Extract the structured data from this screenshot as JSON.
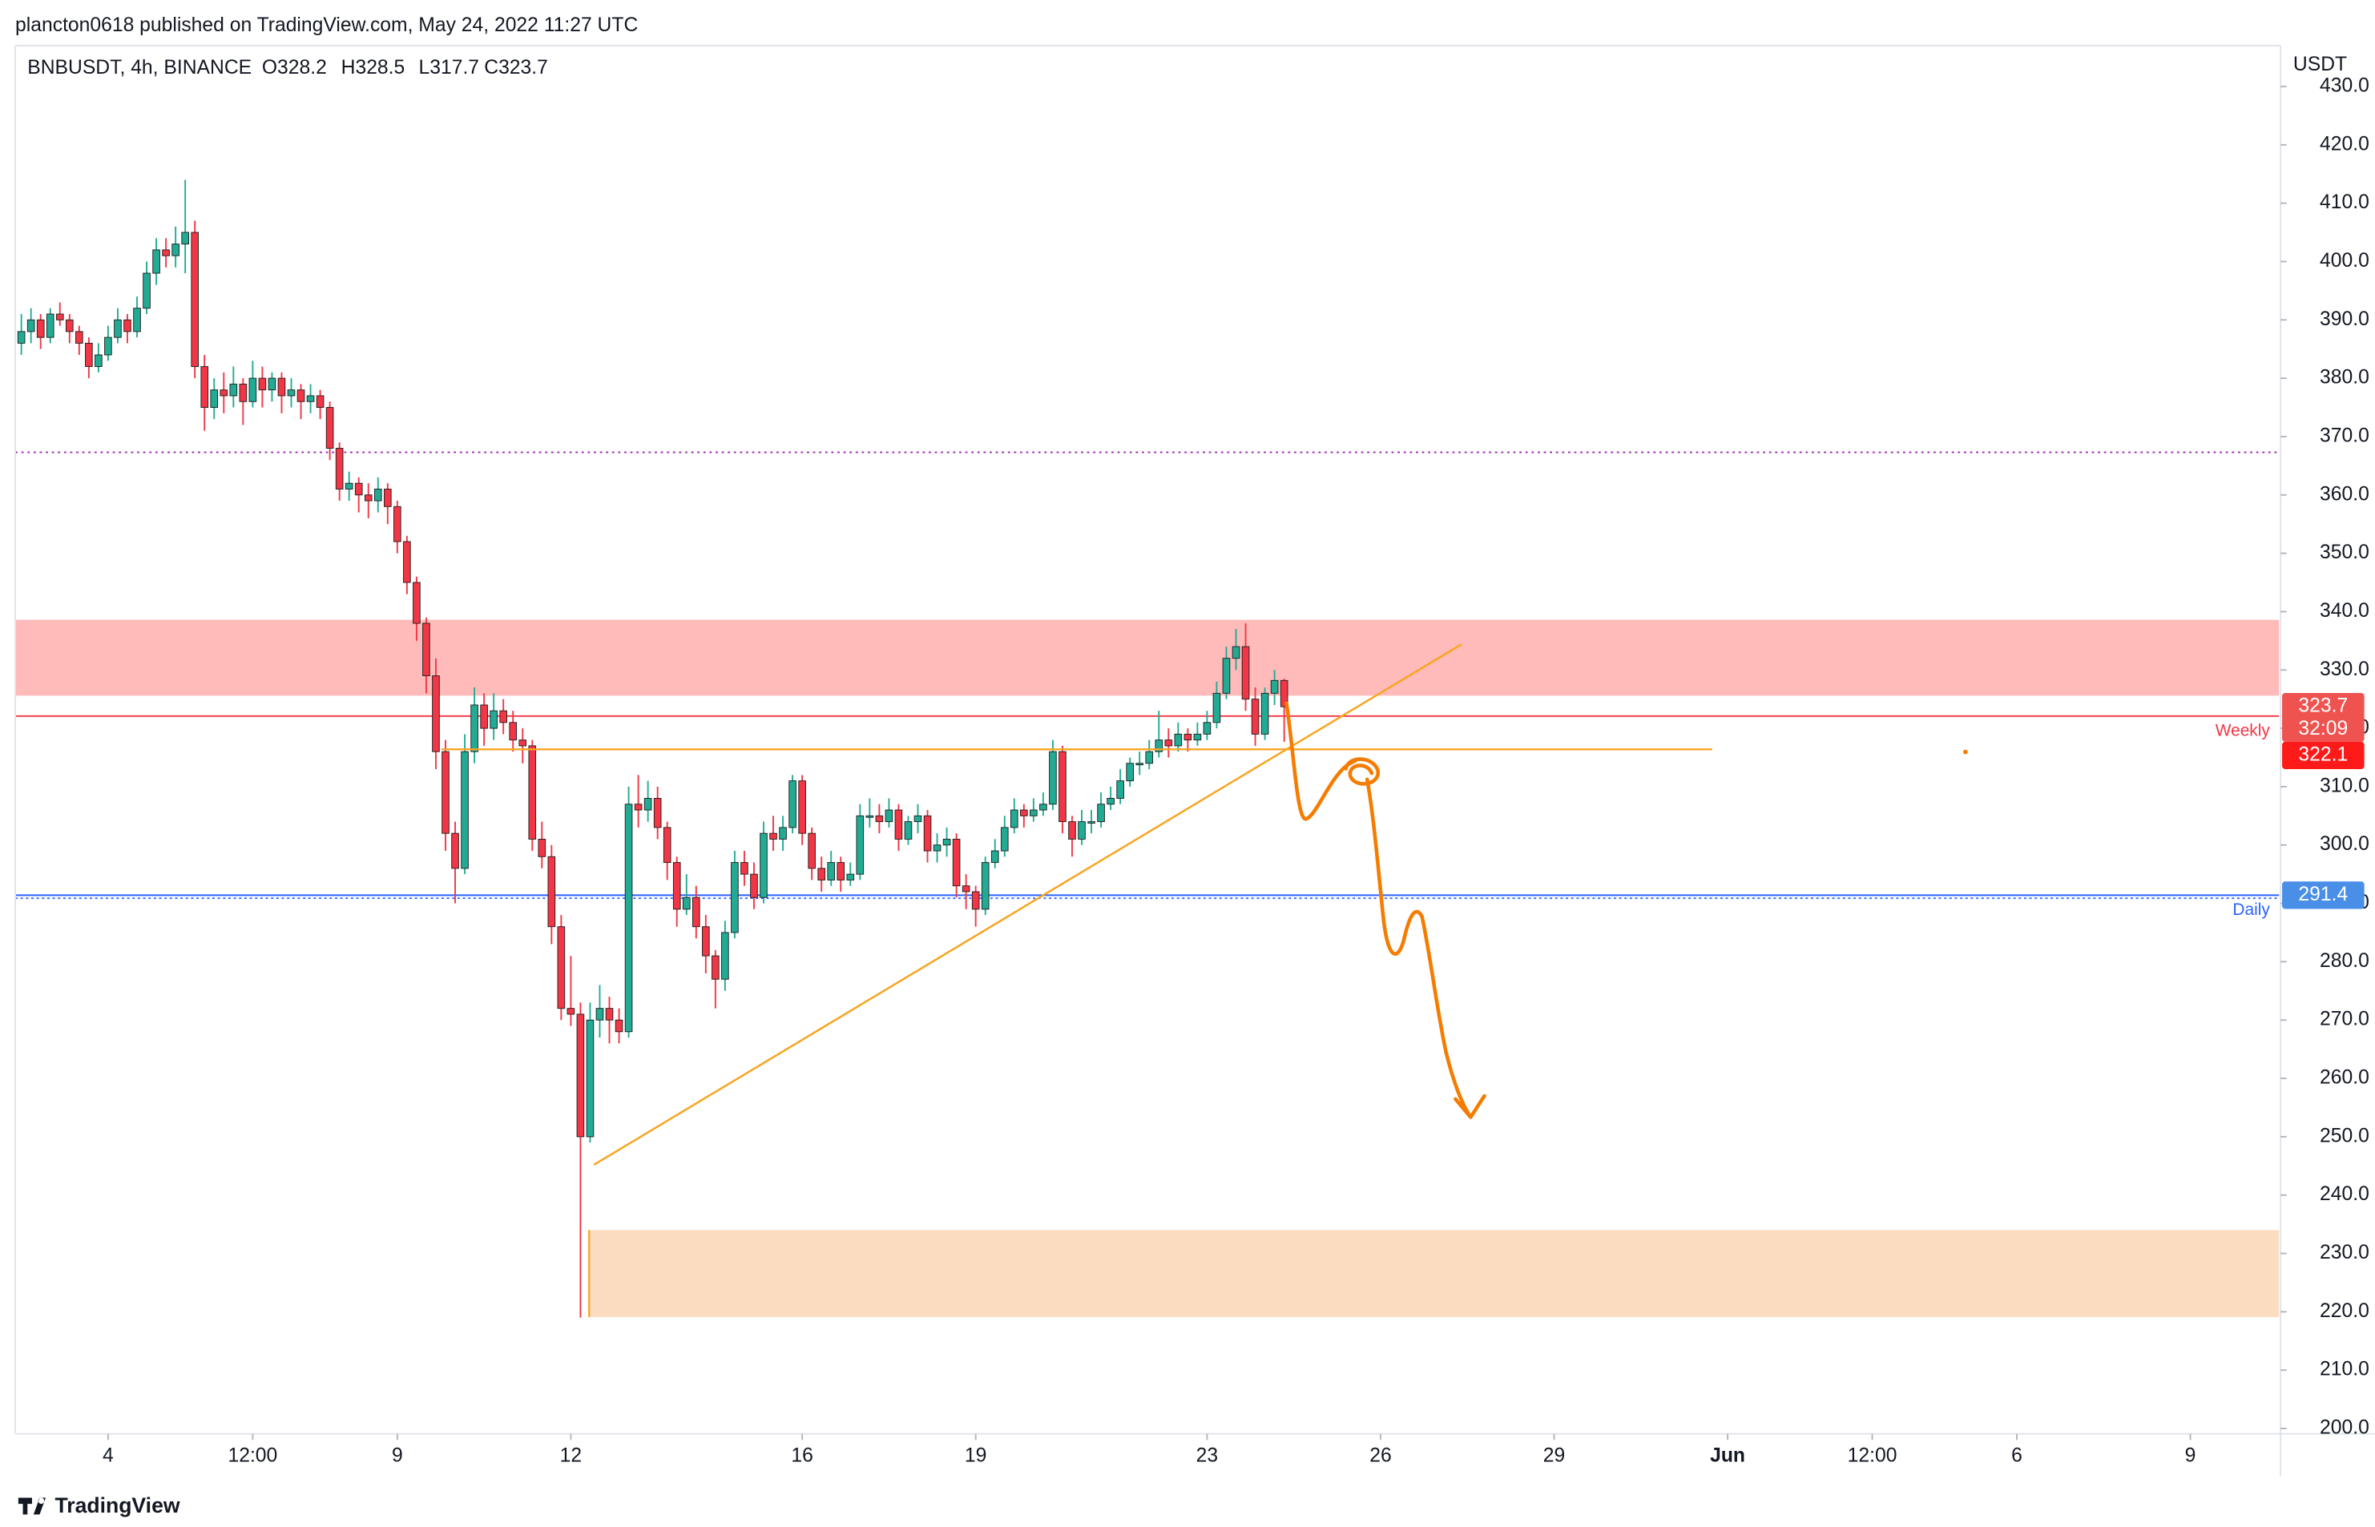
{
  "header": "plancton0618 published on TradingView.com, May 24, 2022 11:27 UTC",
  "footer": "TradingView",
  "chart_data": {
    "type": "candlestick",
    "symbol": "BNBUSDT, 4h, BINANCE",
    "ohlc_labels": [
      "O328.2",
      "H328.5",
      "L317.7",
      "C323.7"
    ],
    "y_axis_label": "USDT",
    "colors": {
      "up": "#22ab94",
      "down": "#f23645"
    },
    "grid": false,
    "candles": [
      [
        386,
        391,
        384,
        388
      ],
      [
        388,
        392,
        386,
        390
      ],
      [
        390,
        391,
        385,
        387
      ],
      [
        387,
        392,
        386,
        391
      ],
      [
        391,
        393,
        389,
        390
      ],
      [
        390,
        391,
        386,
        388
      ],
      [
        388,
        389,
        384,
        386
      ],
      [
        386,
        387,
        380,
        382
      ],
      [
        382,
        386,
        381,
        384
      ],
      [
        384,
        389,
        383,
        387
      ],
      [
        387,
        392,
        386,
        390
      ],
      [
        390,
        391,
        386,
        388
      ],
      [
        388,
        394,
        387,
        392
      ],
      [
        392,
        400,
        391,
        398
      ],
      [
        398,
        404,
        396,
        402
      ],
      [
        402,
        404,
        399,
        401
      ],
      [
        401,
        406,
        399,
        403
      ],
      [
        403,
        414,
        398,
        405
      ],
      [
        405,
        407,
        380,
        382
      ],
      [
        382,
        384,
        371,
        375
      ],
      [
        375,
        380,
        373,
        378
      ],
      [
        378,
        381,
        374,
        377
      ],
      [
        377,
        382,
        375,
        379
      ],
      [
        379,
        380,
        372,
        376
      ],
      [
        376,
        383,
        375,
        380
      ],
      [
        380,
        382,
        375,
        378
      ],
      [
        378,
        381,
        376,
        380
      ],
      [
        380,
        381,
        374,
        377
      ],
      [
        377,
        380,
        375,
        378
      ],
      [
        378,
        379,
        373,
        376
      ],
      [
        376,
        379,
        374,
        377
      ],
      [
        377,
        378,
        373,
        375
      ],
      [
        375,
        376,
        366,
        368
      ],
      [
        368,
        369,
        359,
        361
      ],
      [
        361,
        364,
        359,
        362
      ],
      [
        362,
        363,
        357,
        360
      ],
      [
        360,
        362,
        356,
        359
      ],
      [
        359,
        363,
        357,
        361
      ],
      [
        361,
        362,
        355,
        358
      ],
      [
        358,
        359,
        350,
        352
      ],
      [
        352,
        353,
        343,
        345
      ],
      [
        345,
        346,
        335,
        338
      ],
      [
        338,
        339,
        326,
        329
      ],
      [
        329,
        332,
        313,
        316
      ],
      [
        316,
        318,
        299,
        302
      ],
      [
        302,
        304,
        290,
        296
      ],
      [
        296,
        319,
        295,
        316
      ],
      [
        316,
        327,
        314,
        324
      ],
      [
        324,
        326,
        317,
        320
      ],
      [
        320,
        326,
        318,
        323
      ],
      [
        323,
        325,
        319,
        321
      ],
      [
        321,
        323,
        316,
        318
      ],
      [
        318,
        320,
        314,
        317
      ],
      [
        317,
        318,
        299,
        301
      ],
      [
        301,
        304,
        296,
        298
      ],
      [
        298,
        300,
        283,
        286
      ],
      [
        286,
        288,
        270,
        272
      ],
      [
        272,
        281,
        269,
        271
      ],
      [
        271,
        273,
        219,
        250
      ],
      [
        250,
        273,
        249,
        270
      ],
      [
        270,
        276,
        267,
        272
      ],
      [
        272,
        274,
        266,
        270
      ],
      [
        270,
        272,
        266,
        268
      ],
      [
        268,
        310,
        267,
        307
      ],
      [
        307,
        312,
        303,
        306
      ],
      [
        306,
        311,
        304,
        308
      ],
      [
        308,
        310,
        301,
        303
      ],
      [
        303,
        304,
        294,
        297
      ],
      [
        297,
        298,
        286,
        289
      ],
      [
        289,
        295,
        288,
        291
      ],
      [
        291,
        293,
        284,
        286
      ],
      [
        286,
        288,
        278,
        281
      ],
      [
        281,
        282,
        272,
        277
      ],
      [
        277,
        287,
        275,
        285
      ],
      [
        285,
        299,
        284,
        297
      ],
      [
        297,
        299,
        293,
        295
      ],
      [
        295,
        297,
        289,
        291
      ],
      [
        291,
        304,
        290,
        302
      ],
      [
        302,
        305,
        299,
        301
      ],
      [
        301,
        305,
        299,
        303
      ],
      [
        303,
        312,
        302,
        311
      ],
      [
        311,
        312,
        300,
        302
      ],
      [
        302,
        303,
        294,
        296
      ],
      [
        296,
        298,
        292,
        294
      ],
      [
        294,
        299,
        293,
        297
      ],
      [
        297,
        298,
        292,
        294
      ],
      [
        294,
        297,
        293,
        295
      ],
      [
        295,
        307,
        294,
        305
      ],
      [
        305,
        308,
        303,
        305
      ],
      [
        305,
        307,
        302,
        304
      ],
      [
        304,
        308,
        303,
        306
      ],
      [
        306,
        307,
        299,
        301
      ],
      [
        301,
        305,
        300,
        304
      ],
      [
        304,
        307,
        302,
        305
      ],
      [
        305,
        306,
        297,
        299
      ],
      [
        299,
        302,
        297,
        300
      ],
      [
        300,
        303,
        298,
        301
      ],
      [
        301,
        302,
        291,
        293
      ],
      [
        293,
        295,
        289,
        292
      ],
      [
        292,
        293,
        286,
        289
      ],
      [
        289,
        298,
        288,
        297
      ],
      [
        297,
        301,
        296,
        299
      ],
      [
        299,
        305,
        298,
        303
      ],
      [
        303,
        308,
        302,
        306
      ],
      [
        306,
        307,
        303,
        305
      ],
      [
        305,
        308,
        304,
        306
      ],
      [
        306,
        309,
        305,
        307
      ],
      [
        307,
        318,
        306,
        316
      ],
      [
        316,
        317,
        302,
        304
      ],
      [
        304,
        305,
        298,
        301
      ],
      [
        301,
        306,
        300,
        304
      ],
      [
        304,
        306,
        302,
        304
      ],
      [
        304,
        309,
        303,
        307
      ],
      [
        307,
        310,
        306,
        308
      ],
      [
        308,
        313,
        307,
        311
      ],
      [
        311,
        315,
        310,
        314
      ],
      [
        314,
        316,
        312,
        314
      ],
      [
        314,
        318,
        313,
        316
      ],
      [
        316,
        323,
        315,
        318
      ],
      [
        318,
        320,
        315,
        317
      ],
      [
        317,
        321,
        316,
        319
      ],
      [
        319,
        320,
        316,
        318
      ],
      [
        318,
        321,
        317,
        319
      ],
      [
        319,
        323,
        318,
        321
      ],
      [
        321,
        328,
        320,
        326
      ],
      [
        326,
        334,
        325,
        332
      ],
      [
        332,
        337,
        330,
        334
      ],
      [
        334,
        338,
        323,
        325
      ],
      [
        325,
        327,
        317,
        319
      ],
      [
        319,
        327,
        318,
        326
      ],
      [
        326,
        330,
        324,
        328.2
      ],
      [
        328.2,
        328.5,
        317.7,
        323.7
      ]
    ],
    "countdown": "32:09",
    "xlim": [
      -0.63,
      234.2
    ],
    "xticks": [
      {
        "value": 9,
        "label": "4"
      },
      {
        "value": 24,
        "label": "12:00"
      },
      {
        "value": 39,
        "label": "9"
      },
      {
        "value": 57,
        "label": "12"
      },
      {
        "value": 81,
        "label": "16"
      },
      {
        "value": 99,
        "label": "19"
      },
      {
        "value": 123,
        "label": "23"
      },
      {
        "value": 141,
        "label": "26"
      },
      {
        "value": 159,
        "label": "29"
      },
      {
        "value": 177,
        "label": "Jun"
      },
      {
        "value": 192,
        "label": "12:00"
      },
      {
        "value": 207,
        "label": "6"
      },
      {
        "value": 225,
        "label": "9"
      }
    ],
    "ylim": [
      199.6,
      437
    ],
    "yticks": [
      {
        "value": 200,
        "label": "200.0"
      },
      {
        "value": 210,
        "label": "210.0"
      },
      {
        "value": 220,
        "label": "220.0"
      },
      {
        "value": 230,
        "label": "230.0"
      },
      {
        "value": 240,
        "label": "240.0"
      },
      {
        "value": 250,
        "label": "250.0"
      },
      {
        "value": 260,
        "label": "260.0"
      },
      {
        "value": 270,
        "label": "270.0"
      },
      {
        "value": 280,
        "label": "280.0"
      },
      {
        "value": 290,
        "label": "290.0"
      },
      {
        "value": 300,
        "label": "300.0"
      },
      {
        "value": 310,
        "label": "310.0"
      },
      {
        "value": 320,
        "label": "320.0"
      },
      {
        "value": 330,
        "label": "330.0"
      },
      {
        "value": 340,
        "label": "340.0"
      },
      {
        "value": 350,
        "label": "350.0"
      },
      {
        "value": 360,
        "label": "360.0"
      },
      {
        "value": 370,
        "label": "370.0"
      },
      {
        "value": 380,
        "label": "380.0"
      },
      {
        "value": 390,
        "label": "390.0"
      },
      {
        "value": 400,
        "label": "400.0"
      },
      {
        "value": 410,
        "label": "410.0"
      },
      {
        "value": 420,
        "label": "420.0"
      },
      {
        "value": 430,
        "label": "430.0"
      }
    ],
    "levels": [
      {
        "name": "Weekly",
        "value": 322.1,
        "color": "#f23645",
        "style": "solid"
      },
      {
        "name": "Daily",
        "value": 291.4,
        "color": "#2962ff",
        "style": "double"
      },
      {
        "value": 367.3,
        "color": "#9c27b0",
        "style": "dotted"
      }
    ],
    "zones": [
      {
        "y": [
          325.6,
          338.6
        ],
        "color": "#ffbaba"
      },
      {
        "y": [
          219.1,
          234
        ],
        "x_start": 58.9,
        "color": "#fbdcc0"
      }
    ],
    "trendlines": [
      {
        "x": [
          59.4,
          149.4
        ],
        "y": [
          245.2,
          334.4
        ],
        "color": "#f7a51f"
      },
      {
        "x": [
          43.6,
          175.4
        ],
        "y": [
          316.4,
          316.4
        ],
        "color": "#f7a51f"
      }
    ]
  }
}
